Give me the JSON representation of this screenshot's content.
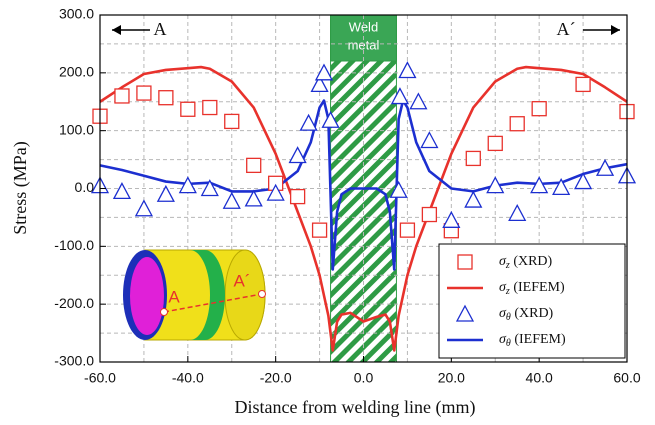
{
  "chart_data": {
    "type": "line",
    "xlabel": "Distance from welding line (mm)",
    "ylabel": "Stress (MPa)",
    "xlim": [
      -60,
      60
    ],
    "ylim": [
      -300,
      300
    ],
    "xticks": [
      {
        "value": -60,
        "label": "-60.0"
      },
      {
        "value": -40,
        "label": "-40.0"
      },
      {
        "value": -20,
        "label": "-20.0"
      },
      {
        "value": 0,
        "label": "0.0"
      },
      {
        "value": 20,
        "label": "20.0"
      },
      {
        "value": 40,
        "label": "40.0"
      },
      {
        "value": 60,
        "label": "60.0"
      }
    ],
    "yticks": [
      {
        "value": -300,
        "label": "-300.0"
      },
      {
        "value": -200,
        "label": "-200.0"
      },
      {
        "value": -100,
        "label": "-100.0"
      },
      {
        "value": 0,
        "label": "0.0"
      },
      {
        "value": 100,
        "label": "100.0"
      },
      {
        "value": 200,
        "label": "200.0"
      },
      {
        "value": 300,
        "label": "300.0"
      }
    ],
    "xminorticks": [
      -50,
      -30,
      -10,
      10,
      30,
      50
    ],
    "yminorticks": [
      -250,
      -150,
      -50,
      50,
      150,
      250
    ],
    "grid": true,
    "legend": "lower right",
    "weld_region": [
      -7.5,
      7.5
    ],
    "weld_label": [
      "Weld",
      "metal"
    ],
    "section_labels": [
      "A",
      "A´"
    ],
    "series": [
      {
        "name": "σz (XRD)",
        "mode": "markers",
        "marker": "square",
        "color": "#e8322c",
        "x": [
          -60,
          -55,
          -50,
          -45,
          -40,
          -35,
          -30,
          -25,
          -20,
          -15,
          -10,
          10,
          15,
          20,
          25,
          30,
          35,
          40,
          50,
          60
        ],
        "values": [
          125,
          160,
          165,
          157,
          137,
          140,
          116,
          40,
          9,
          -14,
          -72,
          -72,
          -45,
          -73,
          52,
          78,
          112,
          138,
          180,
          133
        ]
      },
      {
        "name": "σz (IEFEM)",
        "mode": "line",
        "color": "#e8322c",
        "x": [
          -60,
          -55,
          -50,
          -45,
          -40,
          -37,
          -35,
          -30,
          -25,
          -20,
          -17,
          -15,
          -12,
          -10,
          -8,
          -7,
          -6,
          -5,
          -3,
          0,
          3,
          5,
          6,
          7,
          8,
          10,
          12,
          15,
          17,
          20,
          25,
          30,
          35,
          37,
          40,
          45,
          50,
          55,
          60
        ],
        "values": [
          150,
          175,
          198,
          205,
          208,
          210,
          207,
          185,
          140,
          60,
          0,
          -40,
          -100,
          -150,
          -220,
          -280,
          -230,
          -218,
          -215,
          -230,
          -222,
          -218,
          -230,
          -280,
          -220,
          -150,
          -100,
          -40,
          0,
          60,
          140,
          185,
          207,
          210,
          208,
          205,
          198,
          175,
          150
        ]
      },
      {
        "name": "σθ (XRD)",
        "mode": "markers",
        "marker": "triangle",
        "color": "#1c2fd0",
        "x": [
          -60,
          -55,
          -50,
          -45,
          -40,
          -35,
          -30,
          -25,
          -20,
          -15,
          -12.5,
          -10,
          -9,
          -7.5,
          8,
          8.3,
          10,
          12.5,
          15,
          20,
          25,
          30,
          35,
          40,
          45,
          50,
          55,
          60
        ],
        "values": [
          5,
          -5,
          -35,
          -10,
          5,
          0,
          -22,
          -18,
          -8,
          57,
          113,
          180,
          200,
          118,
          -3,
          159,
          204,
          150,
          83,
          -55,
          -20,
          5,
          -43,
          5,
          2,
          12,
          35,
          22
        ]
      },
      {
        "name": "σθ (IEFEM)",
        "mode": "line",
        "color": "#1c2fd0",
        "x": [
          -60,
          -55,
          -50,
          -45,
          -40,
          -35,
          -30,
          -25,
          -20,
          -15,
          -12,
          -10,
          -9,
          -8,
          -7,
          -6,
          -5,
          -3,
          0,
          3,
          5,
          6,
          7,
          8,
          9,
          10,
          12,
          15,
          20,
          25,
          30,
          35,
          40,
          45,
          50,
          55,
          60
        ],
        "values": [
          40,
          32,
          22,
          12,
          8,
          10,
          -5,
          -5,
          0,
          30,
          80,
          140,
          152,
          120,
          -140,
          -40,
          -10,
          0,
          0,
          0,
          -10,
          -40,
          -140,
          120,
          152,
          140,
          80,
          30,
          0,
          -5,
          5,
          10,
          8,
          10,
          25,
          35,
          42
        ]
      }
    ]
  }
}
